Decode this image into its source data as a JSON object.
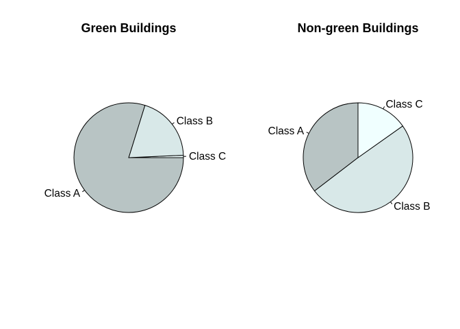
{
  "chart_data": [
    {
      "type": "pie",
      "title": "Green Buildings",
      "start_angle_deg": 0,
      "direction": "counterclockwise",
      "slices": [
        {
          "label": "Class C",
          "value": 0.7,
          "color": "#f0ffff"
        },
        {
          "label": "Class B",
          "value": 19.5,
          "color": "#d8e8e8"
        },
        {
          "label": "Class A",
          "value": 79.8,
          "color": "#b8c4c4"
        }
      ]
    },
    {
      "type": "pie",
      "title": "Non-green Buildings",
      "start_angle_deg": 90,
      "direction": "counterclockwise",
      "slices": [
        {
          "label": "Class A",
          "value": 35.4,
          "color": "#b8c4c4"
        },
        {
          "label": "Class B",
          "value": 49.4,
          "color": "#d8e8e8"
        },
        {
          "label": "Class C",
          "value": 15.2,
          "color": "#f0ffff"
        }
      ]
    }
  ]
}
